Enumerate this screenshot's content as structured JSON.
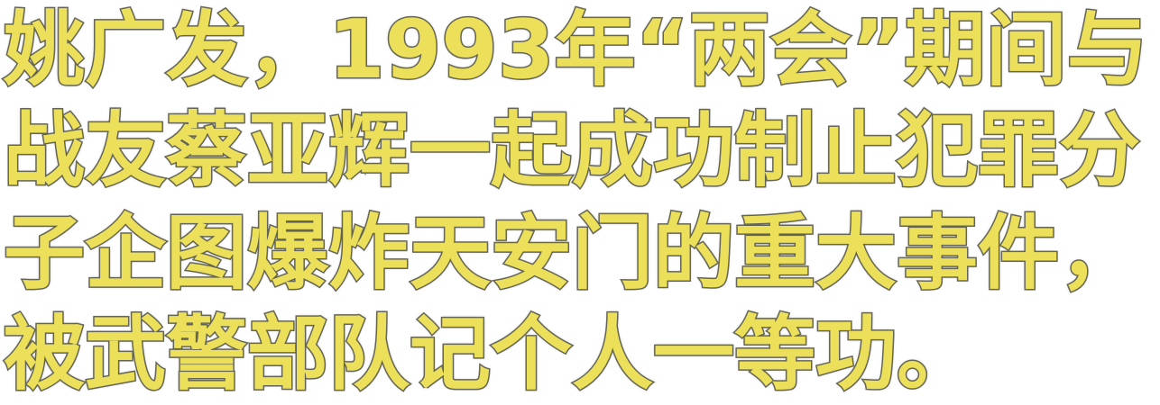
{
  "caption": {
    "lines": [
      "姚广发，1993年“两会”期间与",
      "战友蔡亚辉一起成功制止犯罪分",
      "子企图爆炸天安门的重大事件，",
      "被武警部队记个人一等功。"
    ],
    "text_color": "#ece05a",
    "outline_color": "#6a6a5a"
  }
}
